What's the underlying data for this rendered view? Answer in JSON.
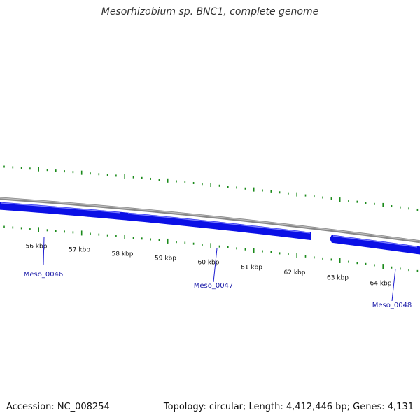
{
  "title": "Mesorhizobium sp. BNC1, complete genome",
  "footer": {
    "accession": "Accession: NC_008254",
    "summary": "Topology: circular; Length: 4,412,446 bp; Genes: 4,131"
  },
  "colors": {
    "gene_fill": "#0b10e6",
    "gene_highlight": "#7a7cff",
    "backbone": "#888888",
    "tick": "#1a8a1a",
    "label_line": "#1a1ad0",
    "label_text": "#1a1aa8"
  },
  "ruler": {
    "labels": [
      "56 kbp",
      "57 kbp",
      "58 kbp",
      "59 kbp",
      "60 kbp",
      "61 kbp",
      "62 kbp",
      "63 kbp",
      "64 kbp"
    ]
  },
  "genes": [
    {
      "name": "Meso_0046",
      "strand": "plus"
    },
    {
      "name": "Meso_0047",
      "strand": "minus"
    },
    {
      "name": "Meso_0048",
      "strand": "minus"
    }
  ]
}
